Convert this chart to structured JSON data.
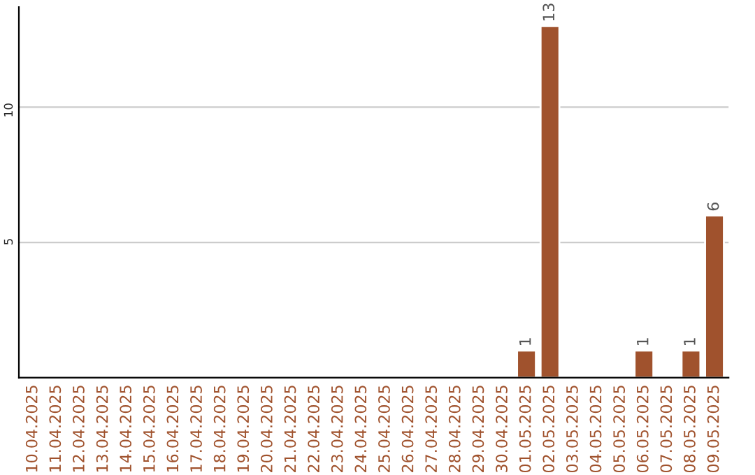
{
  "chart_data": {
    "type": "bar",
    "categories": [
      "10.04.2025",
      "11.04.2025",
      "12.04.2025",
      "13.04.2025",
      "14.04.2025",
      "15.04.2025",
      "16.04.2025",
      "17.04.2025",
      "18.04.2025",
      "19.04.2025",
      "20.04.2025",
      "21.04.2025",
      "22.04.2025",
      "23.04.2025",
      "24.04.2025",
      "25.04.2025",
      "26.04.2025",
      "27.04.2025",
      "28.04.2025",
      "29.04.2025",
      "30.04.2025",
      "01.05.2025",
      "02.05.2025",
      "03.05.2025",
      "04.05.2025",
      "05.05.2025",
      "06.05.2025",
      "07.05.2025",
      "08.05.2025",
      "09.05.2025"
    ],
    "values": [
      null,
      null,
      null,
      null,
      null,
      null,
      null,
      null,
      null,
      null,
      null,
      null,
      null,
      null,
      null,
      null,
      null,
      null,
      null,
      null,
      null,
      1,
      13,
      null,
      null,
      null,
      1,
      null,
      1,
      6
    ],
    "value_labels": [
      null,
      null,
      null,
      null,
      null,
      null,
      null,
      null,
      null,
      null,
      null,
      null,
      null,
      null,
      null,
      null,
      null,
      null,
      null,
      null,
      null,
      "1",
      "13",
      null,
      null,
      null,
      "1",
      null,
      "1",
      "6"
    ],
    "color": "#a0522d",
    "ylim": [
      0,
      13.7
    ],
    "yticks": [
      5,
      10
    ],
    "grid": "y",
    "legend": false
  }
}
